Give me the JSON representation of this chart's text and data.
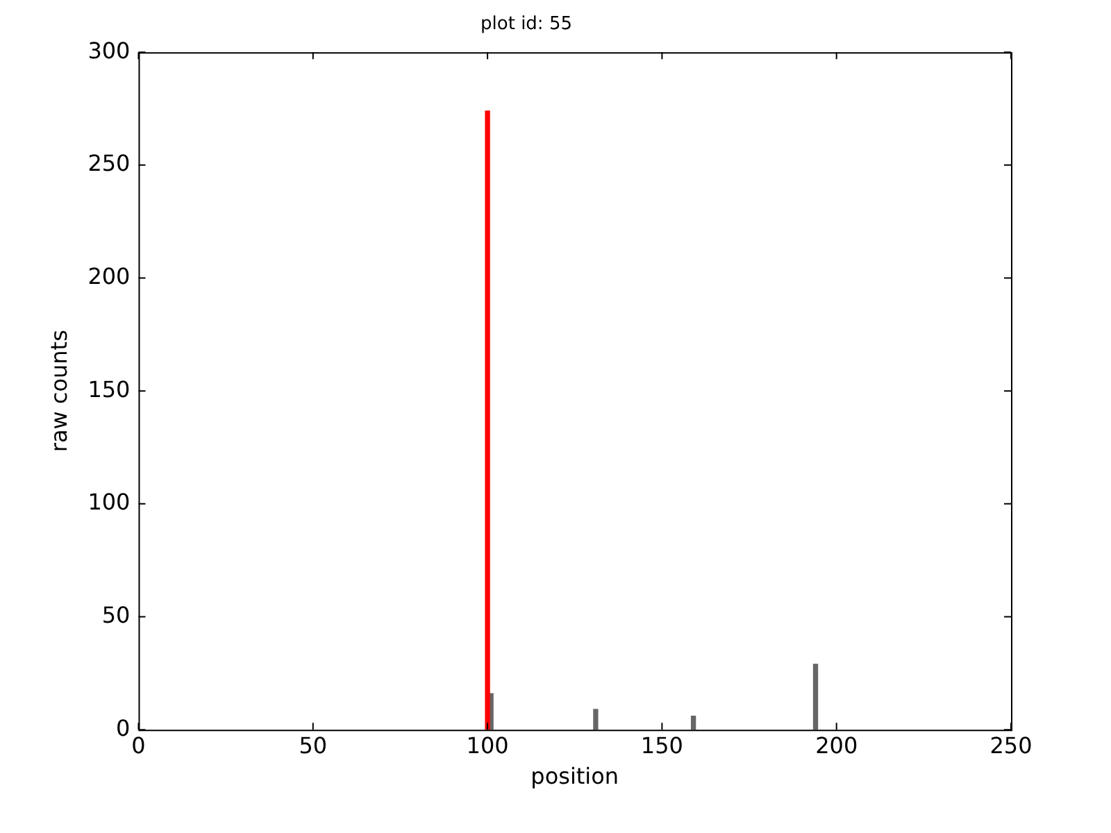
{
  "chart_data": {
    "type": "bar",
    "title": "plot id: 55",
    "xlabel": "position",
    "ylabel": "raw counts",
    "xlim": [
      0,
      250
    ],
    "xticks": [
      0,
      50,
      100,
      150,
      200,
      250
    ],
    "ylim": [
      0,
      300
    ],
    "yticks": [
      0,
      50,
      100,
      150,
      200,
      250,
      300
    ],
    "grid": false,
    "legend": false,
    "series": [
      {
        "color": "#ff0000",
        "x": [
          100
        ],
        "values": [
          274
        ]
      },
      {
        "color": "#666666",
        "x": [
          101,
          131,
          159,
          194
        ],
        "values": [
          16,
          9,
          6,
          29
        ]
      }
    ]
  }
}
